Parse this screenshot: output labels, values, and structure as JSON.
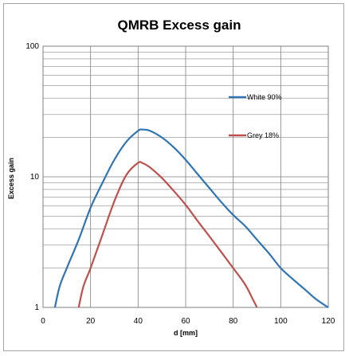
{
  "chart_data": {
    "type": "line",
    "title": "QMRB Excess gain",
    "xlabel": "d [mm]",
    "ylabel": "Excess  gain",
    "xlim": [
      0,
      120
    ],
    "ylim": [
      1,
      100
    ],
    "yscale": "log",
    "x_ticks": [
      "0",
      "20",
      "40",
      "60",
      "80",
      "100",
      "120"
    ],
    "y_ticks": [
      "1",
      "10",
      "100"
    ],
    "grid": true,
    "legend_position": "right",
    "series": [
      {
        "name": "White 90%",
        "color": "#2e75b6",
        "points": [
          [
            5,
            1.0
          ],
          [
            7,
            1.45
          ],
          [
            10,
            2.0
          ],
          [
            15,
            3.3
          ],
          [
            20,
            5.8
          ],
          [
            25,
            9.0
          ],
          [
            30,
            13.5
          ],
          [
            35,
            18.5
          ],
          [
            40,
            22.5
          ],
          [
            42,
            23.0
          ],
          [
            45,
            22.5
          ],
          [
            50,
            20.0
          ],
          [
            55,
            16.8
          ],
          [
            60,
            13.5
          ],
          [
            65,
            10.5
          ],
          [
            70,
            8.2
          ],
          [
            75,
            6.4
          ],
          [
            80,
            5.1
          ],
          [
            85,
            4.2
          ],
          [
            90,
            3.3
          ],
          [
            95,
            2.6
          ],
          [
            100,
            2.0
          ],
          [
            105,
            1.65
          ],
          [
            110,
            1.38
          ],
          [
            115,
            1.15
          ],
          [
            120,
            1.0
          ]
        ]
      },
      {
        "name": "Grey 18%",
        "color": "#c0504d",
        "points": [
          [
            15,
            1.0
          ],
          [
            17,
            1.45
          ],
          [
            20,
            2.0
          ],
          [
            25,
            3.6
          ],
          [
            30,
            6.5
          ],
          [
            35,
            10.3
          ],
          [
            40,
            12.8
          ],
          [
            42,
            12.7
          ],
          [
            45,
            11.8
          ],
          [
            50,
            9.8
          ],
          [
            55,
            7.8
          ],
          [
            60,
            6.1
          ],
          [
            65,
            4.6
          ],
          [
            70,
            3.5
          ],
          [
            75,
            2.65
          ],
          [
            80,
            2.0
          ],
          [
            85,
            1.5
          ],
          [
            88,
            1.18
          ],
          [
            90,
            1.0
          ]
        ]
      }
    ]
  }
}
